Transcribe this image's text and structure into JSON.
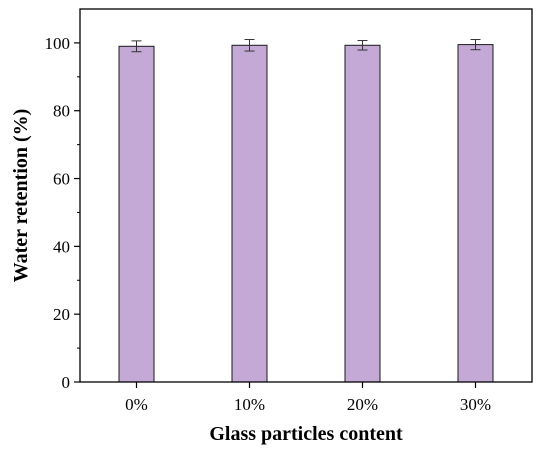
{
  "chart_data": {
    "type": "bar",
    "categories": [
      "0%",
      "10%",
      "20%",
      "30%"
    ],
    "values": [
      99.0,
      99.3,
      99.3,
      99.5
    ],
    "errors": [
      1.6,
      1.7,
      1.4,
      1.5
    ],
    "xlabel": "Glass particles content",
    "ylabel": "Water retention (%)",
    "ylim": [
      0,
      110
    ],
    "yticks": [
      0,
      20,
      40,
      60,
      80,
      100
    ],
    "grid": false,
    "bar_color": "#c4a9d6",
    "bar_edge_color": "#1a1a1a"
  }
}
